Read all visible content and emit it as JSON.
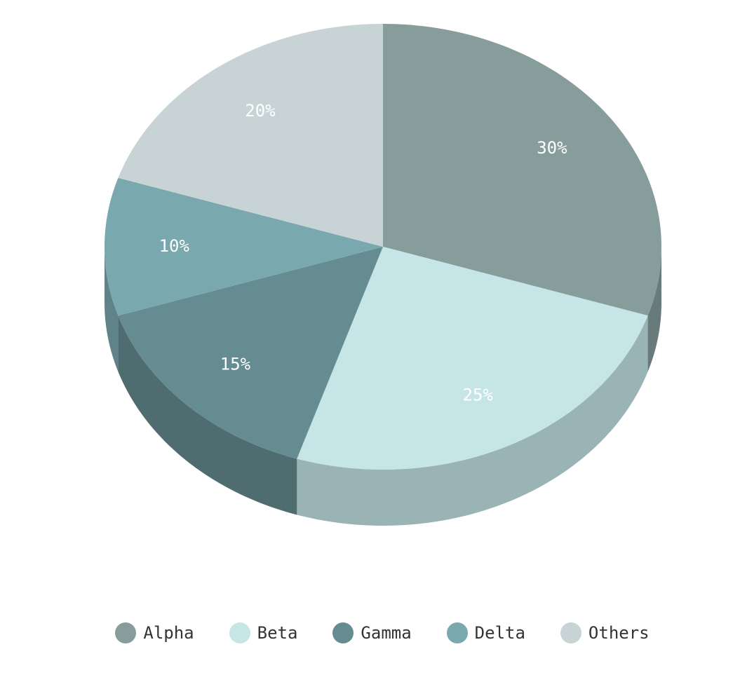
{
  "chart_data": {
    "type": "pie",
    "categories": [
      "Alpha",
      "Beta",
      "Gamma",
      "Delta",
      "Others"
    ],
    "values": [
      30,
      25,
      15,
      10,
      20
    ],
    "data_labels": [
      "30%",
      "25%",
      "15%",
      "10%",
      "20%"
    ],
    "colors": [
      "#869d9c",
      "#c6e5e7",
      "#658c91",
      "#7aa8af",
      "#c7d3d4"
    ],
    "legend": {
      "position": "bottom",
      "items": [
        {
          "label": "Alpha",
          "color": "#869d9c"
        },
        {
          "label": "Beta",
          "color": "#c6e5e7"
        },
        {
          "label": "Gamma",
          "color": "#658c91"
        },
        {
          "label": "Delta",
          "color": "#7aa8af"
        },
        {
          "label": "Others",
          "color": "#c7d3d4"
        }
      ]
    },
    "style": "3d"
  }
}
